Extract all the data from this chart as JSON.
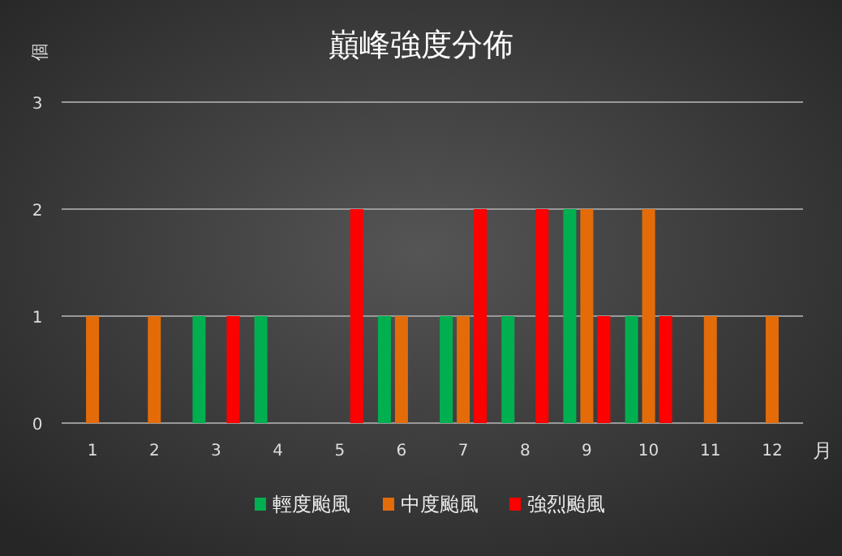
{
  "chart_data": {
    "type": "bar",
    "title": "巔峰強度分佈",
    "xlabel": "月",
    "ylabel": "個",
    "categories": [
      "1",
      "2",
      "3",
      "4",
      "5",
      "6",
      "7",
      "8",
      "9",
      "10",
      "11",
      "12"
    ],
    "series": [
      {
        "name": "輕度颱風",
        "color": "#00b050",
        "values": [
          0,
          0,
          1,
          1,
          0,
          1,
          1,
          1,
          2,
          1,
          0,
          0
        ]
      },
      {
        "name": "中度颱風",
        "color": "#e36c09",
        "values": [
          1,
          1,
          0,
          0,
          0,
          1,
          1,
          0,
          2,
          2,
          1,
          1
        ]
      },
      {
        "name": "強烈颱風",
        "color": "#ff0000",
        "values": [
          0,
          0,
          1,
          0,
          2,
          0,
          2,
          2,
          1,
          1,
          0,
          0
        ]
      }
    ],
    "ylim": [
      0,
      3
    ],
    "yticks": [
      0,
      1,
      2,
      3
    ],
    "grid": "y",
    "legend": "bottom"
  }
}
